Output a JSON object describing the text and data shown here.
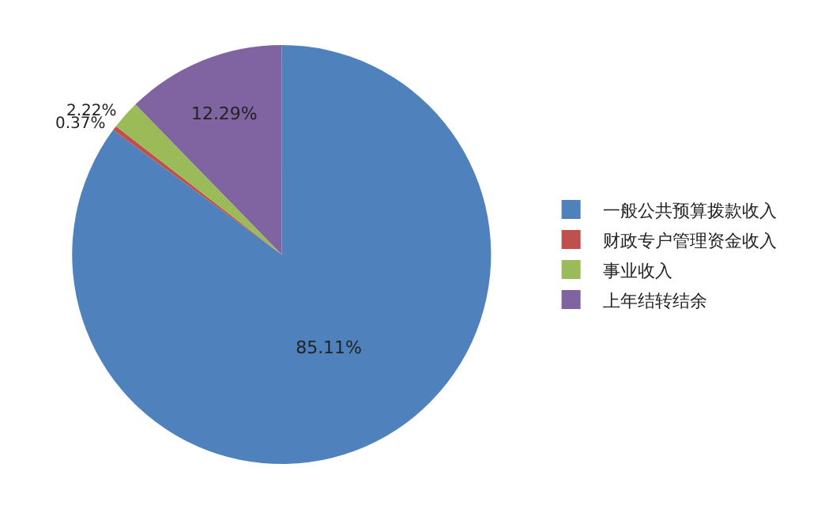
{
  "chart_data": {
    "type": "pie",
    "categories": [
      "一般公共预算拨款收入",
      "财政专户管理资金收入",
      "事业收入",
      "上年结转结余"
    ],
    "values": [
      85.11,
      0.37,
      2.22,
      12.29
    ],
    "value_labels": [
      "85.11%",
      "0.37%",
      "2.22%",
      "12.29%"
    ],
    "colors": [
      "#4f81bd",
      "#c0504d",
      "#9bbb59",
      "#8064a2"
    ],
    "legend": "right"
  }
}
